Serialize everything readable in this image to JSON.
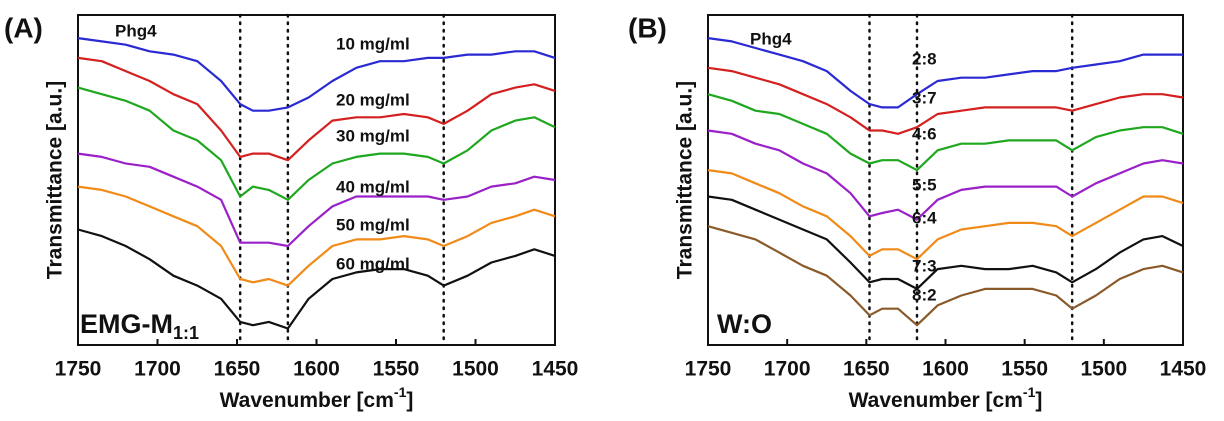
{
  "chart_data": [
    {
      "type": "line",
      "panel_label": "(A)",
      "text": "Phg4",
      "annotation": "EMG-M",
      "annotation_sub": "1:1",
      "xlabel": "Wavenumber [cm",
      "xlabel_sup": "-1",
      "xlabel_end": "]",
      "ylabel": "Transmittance [a.u.]",
      "xlim": [
        1750,
        1450
      ],
      "xticks": [
        1750,
        1700,
        1650,
        1600,
        1550,
        1500,
        1450
      ],
      "ylim": [
        0,
        100
      ],
      "vlines": [
        1648,
        1618,
        1520
      ],
      "x": [
        1750,
        1735,
        1720,
        1705,
        1690,
        1675,
        1660,
        1648,
        1640,
        1630,
        1618,
        1605,
        1590,
        1575,
        1560,
        1545,
        1530,
        1520,
        1505,
        1490,
        1475,
        1463,
        1450
      ],
      "series": [
        {
          "name": "10 mg/ml",
          "color": "#2a2ad4",
          "values": [
            93,
            92,
            91,
            89,
            88,
            86,
            80,
            73,
            71,
            71,
            72,
            75,
            80,
            84,
            86,
            86,
            87,
            87,
            88,
            88,
            89,
            89,
            87
          ]
        },
        {
          "name": "20 mg/ml",
          "color": "#d42020",
          "values": [
            87,
            86,
            83,
            80,
            76,
            73,
            65,
            57,
            58,
            58,
            56,
            62,
            68,
            69,
            69,
            70,
            69,
            67,
            71,
            76,
            78,
            79,
            77
          ]
        },
        {
          "name": "30 mg/ml",
          "color": "#1fa81f",
          "values": [
            78,
            76,
            74,
            71,
            65,
            62,
            56,
            45,
            48,
            47,
            44,
            50,
            55,
            57,
            58,
            58,
            57,
            55,
            59,
            65,
            68,
            69,
            66
          ]
        },
        {
          "name": "40 mg/ml",
          "color": "#9a20c8",
          "values": [
            58,
            57,
            55,
            54,
            51,
            48,
            44,
            31,
            31,
            31,
            30,
            36,
            42,
            45,
            45,
            45,
            45,
            44,
            45,
            48,
            49,
            51,
            50
          ]
        },
        {
          "name": "50 mg/ml",
          "color": "#f08a18",
          "values": [
            48,
            47,
            45,
            42,
            39,
            36,
            30,
            20,
            19,
            20,
            18,
            24,
            30,
            32,
            32,
            33,
            32,
            30,
            33,
            37,
            39,
            41,
            39
          ]
        },
        {
          "name": "60 mg/ml",
          "color": "#111111",
          "values": [
            35,
            33,
            30,
            26,
            21,
            18,
            14,
            7,
            6,
            7,
            5,
            14,
            20,
            22,
            23,
            23,
            21,
            18,
            21,
            25,
            27,
            29,
            27
          ]
        }
      ]
    },
    {
      "type": "line",
      "panel_label": "(B)",
      "text": "Phg4",
      "annotation": "W:O",
      "xlabel": "Wavenumber [cm",
      "xlabel_sup": "-1",
      "xlabel_end": "]",
      "ylabel": "Transmittance [a.u.]",
      "xlim": [
        1750,
        1450
      ],
      "xticks": [
        1750,
        1700,
        1650,
        1600,
        1550,
        1500,
        1450
      ],
      "ylim": [
        0,
        100
      ],
      "vlines": [
        1648,
        1618,
        1520
      ],
      "x": [
        1750,
        1735,
        1720,
        1705,
        1690,
        1675,
        1660,
        1648,
        1640,
        1630,
        1618,
        1605,
        1590,
        1575,
        1560,
        1545,
        1530,
        1520,
        1505,
        1490,
        1475,
        1463,
        1450
      ],
      "series": [
        {
          "name": "2:8",
          "color": "#2a2ad4",
          "values": [
            93,
            92,
            90,
            88,
            86,
            83,
            77,
            73,
            72,
            72,
            76,
            80,
            81,
            81,
            82,
            83,
            83,
            84,
            85,
            86,
            88,
            88,
            88
          ]
        },
        {
          "name": "3:7",
          "color": "#d42020",
          "values": [
            84,
            83,
            81,
            79,
            76,
            73,
            69,
            65,
            65,
            64,
            66,
            70,
            71,
            72,
            72,
            72,
            72,
            71,
            73,
            75,
            76,
            76,
            75
          ]
        },
        {
          "name": "4:6",
          "color": "#1fa81f",
          "values": [
            76,
            74,
            71,
            70,
            67,
            64,
            58,
            55,
            56,
            56,
            53,
            59,
            61,
            61,
            62,
            62,
            62,
            59,
            63,
            65,
            66,
            66,
            64
          ]
        },
        {
          "name": "5:5",
          "color": "#9a20c8",
          "values": [
            65,
            64,
            61,
            59,
            55,
            52,
            46,
            39,
            40,
            41,
            38,
            44,
            47,
            48,
            48,
            48,
            48,
            45,
            49,
            52,
            55,
            56,
            55
          ]
        },
        {
          "name": "6:4",
          "color": "#f08a18",
          "values": [
            53,
            52,
            49,
            46,
            42,
            39,
            33,
            27,
            29,
            29,
            26,
            32,
            35,
            36,
            37,
            37,
            36,
            33,
            37,
            41,
            45,
            45,
            43
          ]
        },
        {
          "name": "7:3",
          "color": "#111111",
          "values": [
            45,
            44,
            41,
            38,
            35,
            32,
            25,
            19,
            20,
            20,
            17,
            23,
            24,
            23,
            23,
            24,
            22,
            19,
            23,
            28,
            32,
            33,
            30
          ]
        },
        {
          "name": "8:2",
          "color": "#8b5a2b",
          "values": [
            36,
            34,
            32,
            28,
            24,
            21,
            15,
            9,
            11,
            11,
            6,
            12,
            15,
            17,
            17,
            17,
            15,
            11,
            15,
            20,
            23,
            24,
            22
          ]
        }
      ]
    }
  ]
}
